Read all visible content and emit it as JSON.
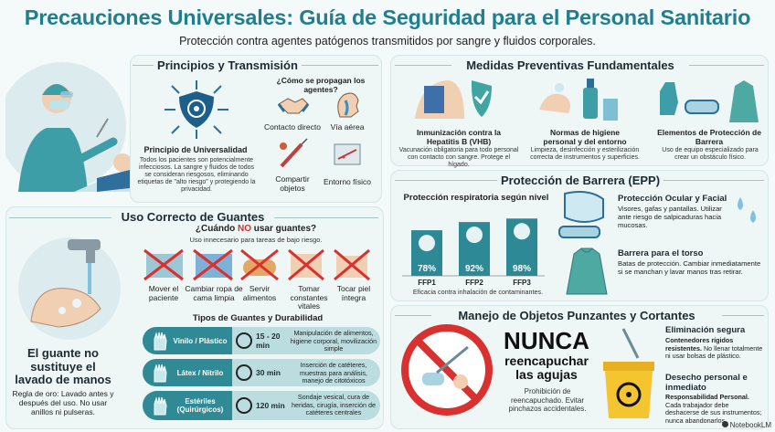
{
  "header": {
    "title": "Precauciones Universales: Guía de Seguridad para el Personal Sanitario",
    "subtitle": "Protección contra agentes patógenos transmitidos por sangre y fluidos corporales."
  },
  "principios": {
    "title": "Principios y Transmisión",
    "universalidad_title": "Principio de Universalidad",
    "universalidad_text": "Todos los pacientes son potencialmente infecciosos. La sangre y fluidos de todos se consideran riesgosos, eliminando etiquetas de \"alto riesgo\" y protegiendo la privacidad.",
    "question": "¿Cómo se propagan los agentes?",
    "routes": [
      "Contacto directo",
      "Vía aérea",
      "Compartir objetos",
      "Entorno físico"
    ]
  },
  "medidas": {
    "title": "Medidas Preventivas Fundamentales",
    "items": [
      {
        "title": "Inmunización contra la Hepatitis B (VHB)",
        "text": "Vacunación obligatoria para todo personal con contacto con sangre. Protege el hígado."
      },
      {
        "title": "Normas de higiene personal y del entorno",
        "text": "Limpieza, desinfección y esterilización correcta de instrumentos y superficies."
      },
      {
        "title": "Elementos de Protección de Barrera",
        "text": "Uso de equipo especializado para crear un obstáculo físico."
      }
    ]
  },
  "guantes": {
    "title": "Uso Correcto de Guantes",
    "question_pre": "¿Cuándo ",
    "question_no": "NO",
    "question_post": " usar guantes?",
    "question_sub": "Uso innecesario para tareas de bajo riesgo.",
    "no_items": [
      "Mover el paciente",
      "Cambiar ropa de cama limpia",
      "Servir alimentos",
      "Tomar constantes vitales",
      "Tocar piel íntegra"
    ],
    "types_title": "Tipos de Guantes y Durabilidad",
    "types": [
      {
        "name": "Vinilo / Plástico",
        "time": "15 - 20 min",
        "desc": "Manipulación de alimentos, higiene corporal, movilización simple"
      },
      {
        "name": "Látex / Nitrilo",
        "time": "30 min",
        "desc": "Inserción de catéteres, muestras para análisis, manejo de citotóxicos"
      },
      {
        "name": "Estériles (Quirúrgicos)",
        "time": "120 min",
        "desc": "Sondaje vesical, cura de heridas, cirugía, inserción de catéteres centrales"
      }
    ],
    "lavado_title": "El guante no sustituye el lavado de manos",
    "lavado_text": "Regla de oro: Lavado antes y después del uso. No usar anillos ni pulseras."
  },
  "epp": {
    "title": "Protección de Barrera (EPP)",
    "resp_title": "Protección respiratoria según nivel",
    "chart_data": {
      "type": "bar",
      "categories": [
        "FFP1",
        "FFP2",
        "FFP3"
      ],
      "values": [
        78,
        92,
        98
      ],
      "labels": [
        "78%",
        "92%",
        "98%"
      ],
      "caption": "Eficacia contra inhalación de contaminantes."
    },
    "ocular_title": "Protección Ocular y Facial",
    "ocular_text": "Visores, gafas y pantallas. Utilizar ante riesgo de salpicaduras hacia mucosas.",
    "torso_title": "Barrera para el torso",
    "torso_text": "Batas de protección. Cambiar inmediatamente si se manchan y lavar manos tras retirar."
  },
  "punzantes": {
    "title": "Manejo de Objetos Punzantes y Cortantes",
    "nunca": "NUNCA",
    "reencap": "reencapuchar las agujas",
    "reencap_text": "Prohibición de reencapuchado. Evitar pinchazos accidentales.",
    "elim_title": "Eliminación segura",
    "elim_bold": "Contenedores rígidos resistentes.",
    "elim_text": " No llenar totalmente ni usar bolsas de plástico.",
    "desecho_title": "Desecho personal e inmediato",
    "desecho_bold": "Responsabilidad Personal.",
    "desecho_text": " Cada trabajador debe deshacerse de sus instrumentos; nunca abandonarlos."
  },
  "brand": "NotebookLM",
  "colors": {
    "teal": "#1f7f8f",
    "accent": "#2c8995",
    "red": "#d93030"
  }
}
